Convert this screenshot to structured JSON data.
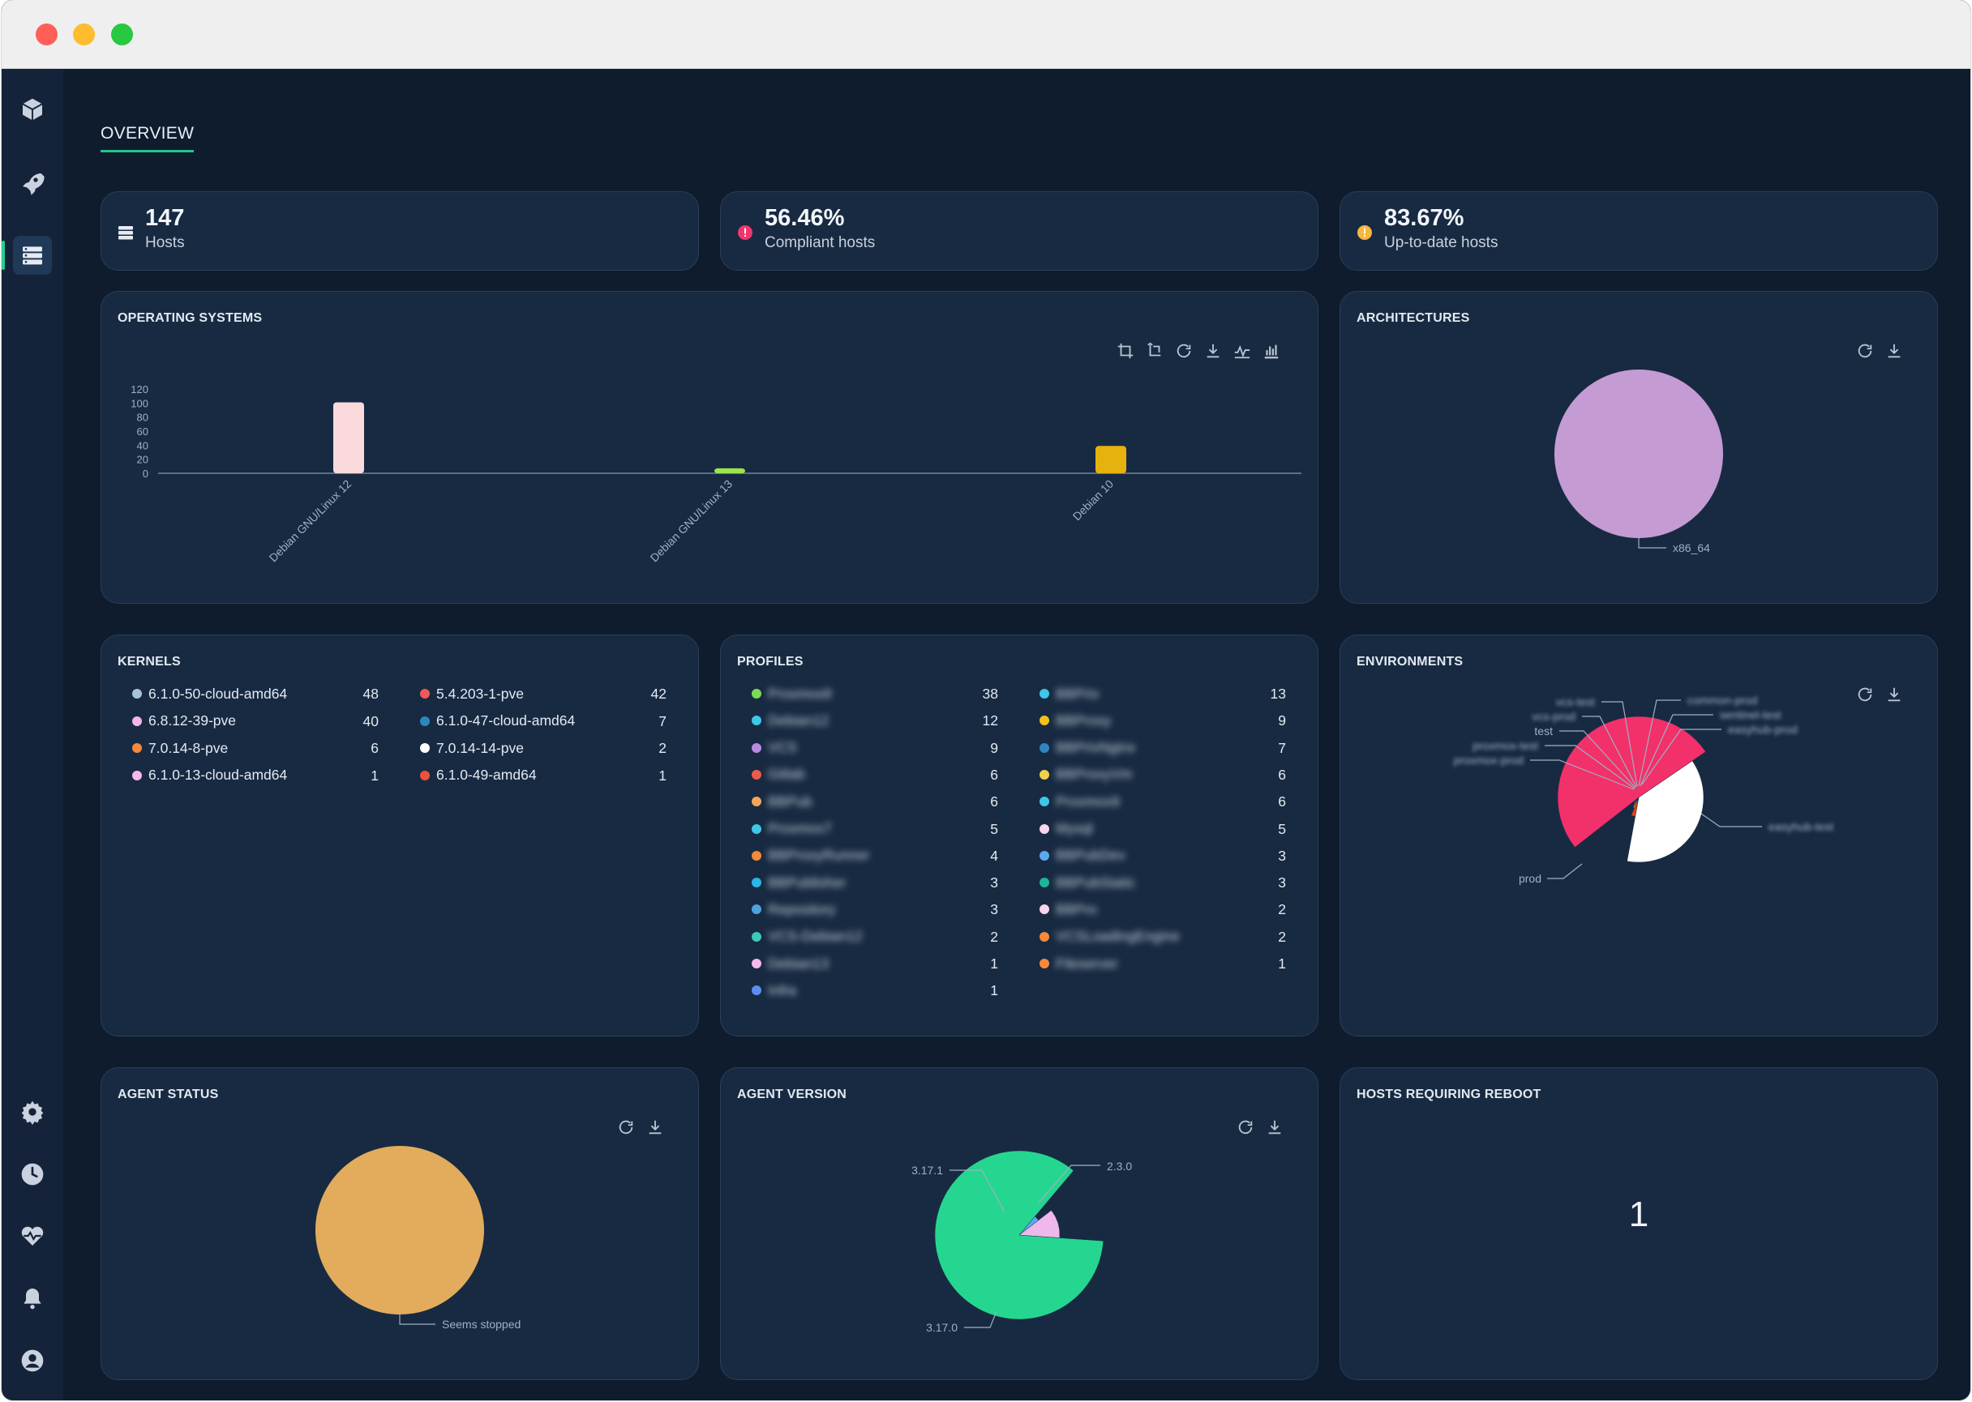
{
  "page": {
    "title": "OVERVIEW"
  },
  "sidebar": {
    "items": [
      {
        "icon": "cube-icon"
      },
      {
        "icon": "rocket-icon"
      },
      {
        "icon": "server-list-icon",
        "active": true
      },
      {
        "icon": "gear-icon"
      },
      {
        "icon": "clock-icon"
      },
      {
        "icon": "heart-pulse-icon"
      },
      {
        "icon": "bell-icon"
      },
      {
        "icon": "user-icon"
      }
    ]
  },
  "stats": [
    {
      "value": "147",
      "label": "Hosts",
      "icon": "server-icon",
      "color": "#e6ebf2"
    },
    {
      "value": "56.46%",
      "label": "Compliant hosts",
      "icon": "exclamation-icon",
      "color": "#f0376b"
    },
    {
      "value": "83.67%",
      "label": "Up-to-date hosts",
      "icon": "exclamation-icon",
      "color": "#f6b73c"
    }
  ],
  "operating_systems": {
    "title": "OPERATING SYSTEMS",
    "chart_data": {
      "type": "bar",
      "categories": [
        "Debian GNU/Linux 12",
        "Debian GNU/Linux 13",
        "Debian 10"
      ],
      "values": [
        101,
        7,
        39
      ],
      "colors": [
        "#fadadd",
        "#9be54a",
        "#e6b20e"
      ],
      "ylim": [
        0,
        120
      ],
      "yticks": [
        "120",
        "100",
        "80",
        "60",
        "40",
        "20",
        "0"
      ]
    }
  },
  "architectures": {
    "title": "ARCHITECTURES",
    "chart_data": {
      "type": "pie",
      "labels": [
        "x86_64"
      ],
      "values": [
        147
      ],
      "colors": [
        "#c59bd4"
      ]
    }
  },
  "kernels": {
    "title": "KERNELS",
    "items": [
      {
        "name": "6.1.0-50-cloud-amd64",
        "count": "48",
        "color": "#a7c4d4"
      },
      {
        "name": "5.4.203-1-pve",
        "count": "42",
        "color": "#f05a5a"
      },
      {
        "name": "6.8.12-39-pve",
        "count": "40",
        "color": "#f3b6e6"
      },
      {
        "name": "6.1.0-47-cloud-amd64",
        "count": "7",
        "color": "#2e86c1"
      },
      {
        "name": "7.0.14-8-pve",
        "count": "6",
        "color": "#f58a3a"
      },
      {
        "name": "7.0.14-14-pve",
        "count": "2",
        "color": "#ffffff"
      },
      {
        "name": "6.1.0-13-cloud-amd64",
        "count": "1",
        "color": "#f6b9e8"
      },
      {
        "name": "6.1.0-49-amd64",
        "count": "1",
        "color": "#f0503c"
      }
    ]
  },
  "profiles": {
    "title": "PROFILES",
    "left": [
      {
        "name": "Proxmox8",
        "count": "38",
        "color": "#7ed957"
      },
      {
        "name": "Debian12",
        "count": "12",
        "color": "#3fc7e8"
      },
      {
        "name": "VCS",
        "count": "9",
        "color": "#b98be0"
      },
      {
        "name": "Gitlab",
        "count": "6",
        "color": "#f05a4a"
      },
      {
        "name": "BBPub",
        "count": "6",
        "color": "#f2a65a"
      },
      {
        "name": "Proxmox7",
        "count": "5",
        "color": "#3fc7e8"
      },
      {
        "name": "BBProxyRunner",
        "count": "4",
        "color": "#f58a3a"
      },
      {
        "name": "BBPublisher",
        "count": "3",
        "color": "#2bb5e8"
      },
      {
        "name": "Repository",
        "count": "3",
        "color": "#4da3e0"
      },
      {
        "name": "VCS-Debian12",
        "count": "2",
        "color": "#3ec9b6"
      },
      {
        "name": "Debian13",
        "count": "1",
        "color": "#f6b9e8"
      },
      {
        "name": "Infra",
        "count": "1",
        "color": "#5a8ff0"
      }
    ],
    "right": [
      {
        "name": "BBPriv",
        "count": "13",
        "color": "#3fc7e8"
      },
      {
        "name": "BBProxy",
        "count": "9",
        "color": "#f2c21a"
      },
      {
        "name": "BBPrivNginx",
        "count": "7",
        "color": "#2e86c1"
      },
      {
        "name": "BBProxyVm",
        "count": "6",
        "color": "#f2d04a"
      },
      {
        "name": "Proxmox9",
        "count": "6",
        "color": "#3fc7e8"
      },
      {
        "name": "Mysql",
        "count": "5",
        "color": "#f8d6ec"
      },
      {
        "name": "BBPubDev",
        "count": "3",
        "color": "#5aaaf0"
      },
      {
        "name": "BBPubStatic",
        "count": "3",
        "color": "#1fb59a"
      },
      {
        "name": "BBPro",
        "count": "2",
        "color": "#f8d6ec"
      },
      {
        "name": "VCSLoadingEngine",
        "count": "2",
        "color": "#f58a3a"
      },
      {
        "name": "Fileserver",
        "count": "1",
        "color": "#f58a3a"
      }
    ]
  },
  "environments": {
    "title": "ENVIRONMENTS",
    "chart_data": {
      "type": "pie",
      "labels": [
        "prod",
        "easyhub-test",
        "easyhub-prod",
        "sentinel-test",
        "common-prod",
        "vcs-test",
        "vcs-prod",
        "test",
        "proxmox-test",
        "proxmox-prod"
      ],
      "values": [
        75,
        55,
        5,
        3,
        2,
        2,
        2,
        1,
        1,
        1
      ],
      "colors": [
        "#f2306a",
        "#ffffff",
        "#d9421c",
        "#f5a623",
        "#7ed957",
        "#3fc7e8",
        "#c59bd4",
        "#2e86c1",
        "#f8d6ec",
        "#1fb59a"
      ]
    }
  },
  "agent_status": {
    "title": "AGENT STATUS",
    "chart_data": {
      "type": "pie",
      "labels": [
        "Seems stopped"
      ],
      "values": [
        147
      ],
      "colors": [
        "#e2ac5c"
      ]
    }
  },
  "agent_version": {
    "title": "AGENT VERSION",
    "chart_data": {
      "type": "pie",
      "labels": [
        "3.17.0",
        "3.17.1",
        "2.3.0"
      ],
      "values": [
        125,
        5,
        17
      ],
      "colors": [
        "#25d690",
        "#5da9e9",
        "#eeb8ea"
      ]
    }
  },
  "reboot": {
    "title": "HOSTS REQUIRING REBOOT",
    "value": "1"
  },
  "tool_icons": [
    "crop-icon",
    "crop-reset-icon",
    "refresh-icon",
    "download-icon",
    "line-chart-icon",
    "bar-chart-icon"
  ]
}
